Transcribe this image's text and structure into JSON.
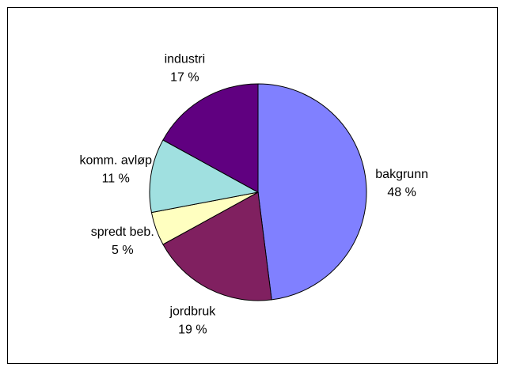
{
  "chart_data": {
    "type": "pie",
    "categories": [
      "bakgrunn",
      "jordbruk",
      "spredt beb.",
      "komm. avløp",
      "industri"
    ],
    "values": [
      48,
      19,
      5,
      11,
      17
    ],
    "value_labels": [
      "48 %",
      "19 %",
      "5 %",
      "11 %",
      "17 %"
    ],
    "colors": [
      "#8080ff",
      "#802060",
      "#ffffc0",
      "#a0e0e0",
      "#600080"
    ]
  }
}
